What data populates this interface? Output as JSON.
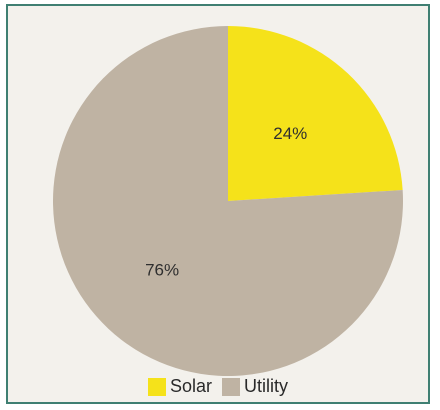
{
  "chart_data": {
    "type": "pie",
    "labels": [
      "Solar",
      "Utility"
    ],
    "values": [
      24,
      76
    ],
    "value_labels": [
      "24%",
      "76%"
    ],
    "colors": [
      "#f5e21a",
      "#bfb3a3"
    ],
    "start_angle_deg": 0,
    "direction": "clockwise",
    "legend": {
      "placement": "bottom",
      "items": [
        {
          "label": "Solar",
          "color": "#f5e21a"
        },
        {
          "label": "Utility",
          "color": "#bfb3a3"
        }
      ]
    }
  }
}
